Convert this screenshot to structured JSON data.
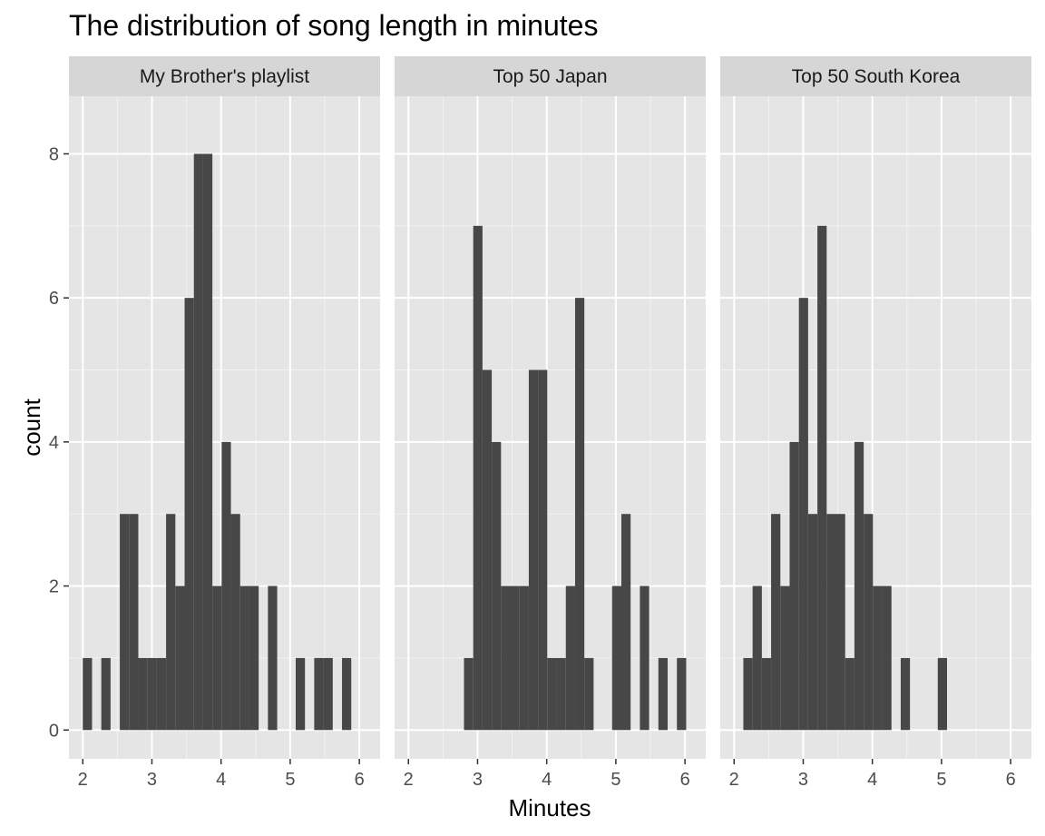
{
  "chart_data": {
    "type": "bar",
    "subtype": "histogram-faceted",
    "title": "The distribution of song length in minutes",
    "xlabel": "Minutes",
    "ylabel": "count",
    "xlim": [
      1.8,
      6.3
    ],
    "ylim": [
      -0.4,
      8.8
    ],
    "x_ticks": [
      2,
      3,
      4,
      5,
      6
    ],
    "y_ticks": [
      0,
      2,
      4,
      6,
      8
    ],
    "bin_width": 0.1339,
    "bin_start": 2.0,
    "grid": true,
    "bar_color": "#474747",
    "panel_bg": "#e5e5e5",
    "strip_bg": "#d6d6d6",
    "facets": [
      {
        "name": "My Brother's playlist",
        "counts": [
          1,
          0,
          1,
          0,
          3,
          3,
          1,
          1,
          1,
          3,
          2,
          6,
          8,
          8,
          2,
          4,
          3,
          2,
          2,
          0,
          2,
          0,
          0,
          1,
          0,
          1,
          1,
          0,
          1
        ]
      },
      {
        "name": "Top 50 Japan",
        "counts": [
          0,
          0,
          0,
          0,
          0,
          0,
          1,
          7,
          5,
          4,
          2,
          2,
          2,
          5,
          5,
          1,
          1,
          2,
          6,
          1,
          0,
          0,
          2,
          3,
          0,
          2,
          0,
          1,
          0,
          1
        ]
      },
      {
        "name": "Top 50 South Korea",
        "counts": [
          0,
          1,
          2,
          1,
          3,
          2,
          4,
          6,
          3,
          7,
          3,
          3,
          1,
          4,
          3,
          2,
          2,
          0,
          1,
          0,
          0,
          0,
          1
        ]
      }
    ]
  }
}
